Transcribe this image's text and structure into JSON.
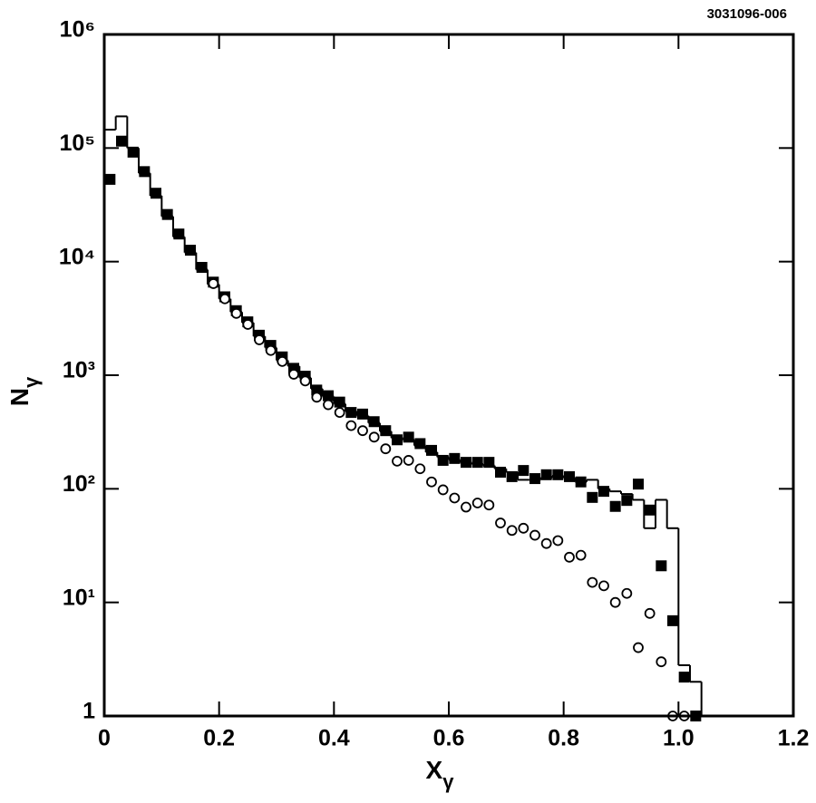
{
  "chart_data": {
    "type": "scatter",
    "annotation": "3031096-006",
    "x_label": "X",
    "x_label_sub": "γ",
    "y_label": "N",
    "y_label_sub": "γ",
    "xlim": [
      0,
      1.2
    ],
    "xticks": [
      0,
      0.2,
      0.4,
      0.6,
      0.8,
      {
        "value": 1,
        "label": "1.0"
      },
      1.2
    ],
    "ylim": [
      1,
      1000000
    ],
    "yscale": "log",
    "yticks": [
      1,
      {
        "value": 10,
        "label": "10¹"
      },
      {
        "value": 100,
        "label": "10²"
      },
      {
        "value": 1000,
        "label": "10³"
      },
      {
        "value": 10000,
        "label": "10⁴"
      },
      {
        "value": 100000,
        "label": "10⁵"
      },
      {
        "value": 1000000,
        "label": "10⁶"
      }
    ],
    "series": [
      {
        "marker": "square",
        "color": "#000000",
        "x": [
          0.01,
          0.03,
          0.05,
          0.07,
          0.09,
          0.11,
          0.13,
          0.15,
          0.17,
          0.19,
          0.21,
          0.23,
          0.25,
          0.27,
          0.29,
          0.31,
          0.33,
          0.35,
          0.37,
          0.39,
          0.41,
          0.43,
          0.45,
          0.47,
          0.49,
          0.51,
          0.53,
          0.55,
          0.57,
          0.59,
          0.61,
          0.63,
          0.65,
          0.67,
          0.69,
          0.71,
          0.73,
          0.75,
          0.77,
          0.79,
          0.81,
          0.83,
          0.85,
          0.87,
          0.89,
          0.91,
          0.93,
          0.95,
          0.97,
          0.99,
          1.01,
          1.03
        ],
        "values": [
          53000,
          115000,
          92000,
          62000,
          40000,
          26000,
          17500,
          12600,
          8900,
          6600,
          4900,
          3700,
          2950,
          2250,
          1830,
          1450,
          1150,
          980,
          740,
          660,
          580,
          470,
          455,
          390,
          325,
          270,
          285,
          250,
          218,
          178,
          185,
          171,
          171,
          171,
          140,
          128,
          145,
          123,
          133,
          133,
          128,
          115,
          84,
          95,
          70,
          79,
          110,
          65,
          21,
          6.9,
          2.2,
          1
        ]
      },
      {
        "marker": "circle",
        "color": "#000000",
        "x": [
          0.19,
          0.21,
          0.23,
          0.25,
          0.27,
          0.29,
          0.31,
          0.33,
          0.35,
          0.37,
          0.39,
          0.41,
          0.43,
          0.45,
          0.47,
          0.49,
          0.51,
          0.53,
          0.55,
          0.57,
          0.59,
          0.61,
          0.63,
          0.65,
          0.67,
          0.69,
          0.71,
          0.73,
          0.75,
          0.77,
          0.79,
          0.81,
          0.83,
          0.85,
          0.87,
          0.89,
          0.91,
          0.93,
          0.95,
          0.97,
          0.99,
          1.01
        ],
        "values": [
          6400,
          4700,
          3500,
          2800,
          2050,
          1650,
          1320,
          1020,
          890,
          640,
          550,
          470,
          360,
          325,
          285,
          225,
          175,
          178,
          150,
          115,
          98,
          83,
          69,
          75,
          72,
          50,
          43,
          45,
          39,
          33,
          35,
          25,
          26,
          15,
          14,
          10,
          12,
          4,
          8,
          3,
          1,
          1
        ]
      }
    ],
    "histogram": {
      "color": "#000000",
      "bins": [
        0,
        0.02,
        0.04,
        0.06,
        0.08,
        0.1,
        0.12,
        0.14,
        0.16,
        0.18,
        0.2,
        0.22,
        0.24,
        0.26,
        0.28,
        0.3,
        0.32,
        0.34,
        0.36,
        0.38,
        0.4,
        0.42,
        0.44,
        0.46,
        0.48,
        0.5,
        0.52,
        0.54,
        0.56,
        0.58,
        0.6,
        0.62,
        0.64,
        0.66,
        0.68,
        0.7,
        0.72,
        0.74,
        0.76,
        0.78,
        0.8,
        0.82,
        0.84,
        0.86,
        0.88,
        0.9,
        0.92,
        0.94,
        0.96,
        0.98,
        1,
        1.02,
        1.04
      ],
      "counts": [
        145000,
        190000,
        100000,
        60000,
        38000,
        25000,
        16500,
        12000,
        8500,
        6300,
        4700,
        3600,
        2900,
        2200,
        1750,
        1350,
        1200,
        950,
        760,
        650,
        560,
        480,
        440,
        380,
        320,
        280,
        270,
        240,
        210,
        190,
        180,
        170,
        165,
        160,
        150,
        140,
        120,
        120,
        125,
        130,
        125,
        115,
        120,
        100,
        95,
        90,
        80,
        45,
        80,
        45,
        2.8,
        2
      ]
    }
  }
}
